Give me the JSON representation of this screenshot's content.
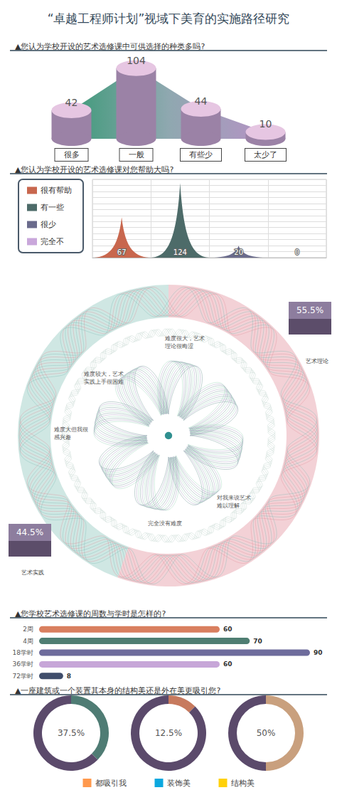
{
  "title": "“卓越工程师计划”视域下美育的实施路径研究",
  "chart_data": [
    {
      "type": "bar",
      "title": "▲您认为学校开设的艺术选修课中可供选择的种类多吗?",
      "categories": [
        "很多",
        "一般",
        "有些少",
        "太少了"
      ],
      "values": [
        42,
        104,
        44,
        10
      ],
      "color": "#9b82a6",
      "ylim": [
        0,
        110
      ],
      "tick_labels": "x",
      "data_labels": true
    },
    {
      "type": "bar",
      "title": "▲您认为学校开设的艺术选修课对您帮助大吗?",
      "categories": [
        "很有帮助",
        "有一些",
        "很少",
        "完全不"
      ],
      "values": [
        67,
        124,
        20,
        0
      ],
      "colors": [
        "#c8674e",
        "#4d6b69",
        "#6a6b8c",
        "#c9a7db"
      ],
      "ylim": [
        0,
        130
      ],
      "yticks": [
        0,
        10,
        20,
        30,
        40,
        50,
        60,
        70,
        80,
        90,
        100,
        110,
        120,
        130
      ],
      "grid": true,
      "legend": "left",
      "tick_labels": false,
      "data_labels": true
    },
    {
      "type": "pie",
      "categories": [
        "艺术理论",
        "艺术实践"
      ],
      "values": [
        55.5,
        44.5
      ],
      "value_labels": [
        "55.5%",
        "44.5%"
      ],
      "colors": [
        "#e7a3ad",
        "#9fd0c8"
      ],
      "data_labels": true,
      "annotations": [
        "难度很大，艺术理论很晦涩",
        "难度较大，艺术实践上手很困难",
        "难度大但我很感兴趣",
        "对我来说艺术难以理解",
        "完全没有难度"
      ]
    },
    {
      "type": "bar",
      "title": "▲您学校艺术选修课的周数与学时是怎样的?",
      "orientation": "horizontal",
      "categories": [
        "2周",
        "4周",
        "18学时",
        "36学时",
        "72学时"
      ],
      "values": [
        60,
        70,
        90,
        60,
        8
      ],
      "colors": [
        "#d97f5f",
        "#4f7e72",
        "#6e6c9c",
        "#c7a6d8",
        "#3f4d6b"
      ],
      "xlim": [
        0,
        90
      ],
      "tick_labels": "y",
      "data_labels": true
    },
    {
      "type": "pie",
      "title": "▲一座建筑或一个装置其本身的结构美还是外在美更吸引您?",
      "categories": [
        "都吸引我",
        "装饰美",
        "结构美"
      ],
      "values": [
        37.5,
        12.5,
        50
      ],
      "value_labels": [
        "37.5%",
        "12.5%",
        "50%"
      ],
      "colors": [
        "#4f7c74",
        "#c77a5e",
        "#c9a07e"
      ],
      "legend": "bottom",
      "data_labels": true
    }
  ]
}
